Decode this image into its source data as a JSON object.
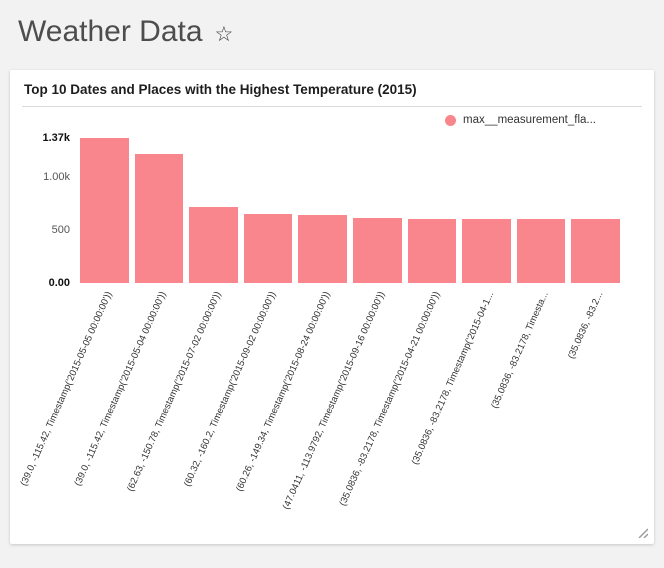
{
  "page": {
    "title": "Weather Data",
    "favorite_icon": "☆"
  },
  "card": {
    "title": "Top 10 Dates and Places with the Highest Temperature (2015)"
  },
  "chart_data": {
    "type": "bar",
    "title": "Top 10 Dates and Places with the Highest Temperature (2015)",
    "legend": [
      {
        "label": "max__measurement_fla...",
        "color": "#f8868c",
        "position": "top-right"
      }
    ],
    "bar_color": "#f8868c",
    "categories": [
      "(39.0, -115.42, Timestamp('2015-05-05 00:00:00'))",
      "(39.0, -115.42, Timestamp('2015-05-04 00:00:00'))",
      "(62.63, -150.78, Timestamp('2015-07-02 00:00:00'))",
      "(60.32, -160.2, Timestamp('2015-09-02 00:00:00'))",
      "(60.26, -149.34, Timestamp('2015-08-24 00:00:00'))",
      "(47.0411, -113.9792, Timestamp('2015-09-16 00:00:00'))",
      "(35.0836, -83.2178, Timestamp('2015-04-21 00:00:00'))",
      "(35.0836, -83.2178, Timestamp('2015-04-1...",
      "(35.0836, -83.2178, Timesta...",
      "(35.0836, -83.2..."
    ],
    "values": [
      1370,
      1220,
      720,
      650,
      645,
      610,
      606,
      604,
      603,
      602
    ],
    "ylim": [
      0,
      1370
    ],
    "grid": false,
    "yticks": [
      {
        "value": 1370,
        "label": "1.37k",
        "bold": true
      },
      {
        "value": 1000,
        "label": "1.00k",
        "bold": false
      },
      {
        "value": 500,
        "label": "500",
        "bold": false
      },
      {
        "value": 0,
        "label": "0.00",
        "bold": true
      }
    ]
  }
}
